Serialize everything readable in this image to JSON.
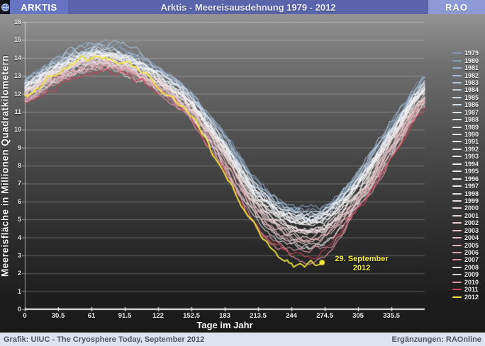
{
  "header": {
    "logo_text": "ARKTIS",
    "title": "Arktis - Meereisausdehnung 1979 - 2012",
    "brand": "RAO"
  },
  "footer": {
    "left": "Grafik: UIUC - The Cryosphere Today, September 2012",
    "right": "Ergänzungen: RAOnline"
  },
  "colors": {
    "header_logo_bg": "#6774C2",
    "header_title_bg": "#5964AA",
    "header_brand_bg": "#8E9AD6",
    "footer_bg": "#DDE3F0",
    "annotation_yellow": "#F5EA3E",
    "grid": "rgba(255,255,255,0.28)",
    "axis": "#F2F2F2"
  },
  "chart_data": {
    "type": "line",
    "title": "Arktis - Meereisausdehnung 1979 - 2012",
    "xlabel": "Tage im Jahr",
    "ylabel": "Meereisfläche in Millionen Quadratkilometern",
    "xlim": [
      0,
      366
    ],
    "ylim": [
      0,
      16
    ],
    "x_ticks": [
      0,
      30.5,
      61,
      91.5,
      122,
      152.5,
      183,
      213.5,
      244,
      274.5,
      305,
      335.5
    ],
    "y_ticks": [
      0,
      1,
      2,
      3,
      4,
      5,
      6,
      7,
      8,
      9,
      10,
      11,
      12,
      13,
      14,
      15,
      16
    ],
    "grid": "horizontal",
    "legend_position": "right",
    "x_days": [
      0,
      30,
      61,
      91,
      122,
      152,
      183,
      213,
      244,
      274,
      305,
      335,
      366
    ],
    "series": [
      {
        "name": "1979",
        "color": "#7C94B0",
        "values": [
          12.9,
          13.9,
          14.6,
          14.4,
          13.4,
          12.0,
          9.6,
          7.0,
          5.7,
          5.7,
          7.6,
          10.3,
          12.8
        ]
      },
      {
        "name": "1980",
        "color": "#89A2BC",
        "values": [
          12.8,
          14.0,
          14.8,
          14.5,
          13.5,
          11.9,
          9.7,
          7.1,
          5.6,
          5.8,
          7.5,
          10.2,
          12.9
        ]
      },
      {
        "name": "1981",
        "color": "#97AFC7",
        "values": [
          12.6,
          13.7,
          14.4,
          14.2,
          13.2,
          11.8,
          9.4,
          6.8,
          5.5,
          5.5,
          7.4,
          10.1,
          12.6
        ]
      },
      {
        "name": "1982",
        "color": "#A5BBD1",
        "values": [
          12.9,
          14.0,
          14.8,
          14.6,
          13.4,
          12.1,
          9.6,
          7.0,
          5.7,
          5.6,
          7.6,
          10.4,
          12.8
        ]
      },
      {
        "name": "1983",
        "color": "#B2C6DA",
        "values": [
          12.7,
          13.8,
          14.5,
          14.3,
          13.3,
          11.9,
          9.5,
          6.9,
          5.5,
          5.6,
          7.4,
          10.1,
          12.6
        ]
      },
      {
        "name": "1984",
        "color": "#BFD0E1",
        "values": [
          12.5,
          13.6,
          14.2,
          14.0,
          13.0,
          11.6,
          9.2,
          6.6,
          5.2,
          5.3,
          7.2,
          9.9,
          12.4
        ]
      },
      {
        "name": "1985",
        "color": "#CBD9E8",
        "values": [
          12.6,
          13.7,
          14.4,
          14.2,
          13.2,
          11.8,
          9.3,
          6.7,
          5.3,
          5.4,
          7.3,
          10.0,
          12.5
        ]
      },
      {
        "name": "1986",
        "color": "#D5E1ED",
        "values": [
          12.6,
          13.6,
          14.3,
          14.1,
          13.1,
          11.7,
          9.3,
          6.7,
          5.4,
          5.5,
          7.3,
          10.0,
          12.5
        ]
      },
      {
        "name": "1987",
        "color": "#DEE7F1",
        "values": [
          12.5,
          13.6,
          14.3,
          14.1,
          13.1,
          11.7,
          9.2,
          6.6,
          5.3,
          5.4,
          7.2,
          9.9,
          12.4
        ]
      },
      {
        "name": "1988",
        "color": "#E5ECF4",
        "values": [
          12.5,
          13.5,
          14.2,
          14.0,
          13.0,
          11.6,
          9.1,
          6.5,
          5.2,
          5.3,
          7.1,
          9.9,
          12.4
        ]
      },
      {
        "name": "1989",
        "color": "#EBF0F6",
        "values": [
          12.4,
          13.5,
          14.2,
          14.0,
          13.0,
          11.6,
          9.1,
          6.4,
          5.1,
          5.2,
          7.0,
          9.8,
          12.3
        ]
      },
      {
        "name": "1990",
        "color": "#EFF2F6",
        "values": [
          12.4,
          13.4,
          14.1,
          13.9,
          12.9,
          11.5,
          9.0,
          6.3,
          5.0,
          5.1,
          6.9,
          9.7,
          12.2
        ]
      },
      {
        "name": "1991",
        "color": "#F1F3F6",
        "values": [
          12.4,
          13.5,
          14.2,
          14.0,
          13.0,
          11.5,
          9.0,
          6.3,
          5.0,
          5.1,
          7.0,
          9.7,
          12.3
        ]
      },
      {
        "name": "1992",
        "color": "#F2F3F5",
        "values": [
          12.3,
          13.4,
          14.1,
          13.9,
          12.9,
          11.5,
          9.0,
          6.4,
          5.1,
          5.2,
          7.0,
          9.8,
          12.3
        ]
      },
      {
        "name": "1993",
        "color": "#F2F2F3",
        "values": [
          12.3,
          13.4,
          14.1,
          13.9,
          12.8,
          11.4,
          8.9,
          6.2,
          4.9,
          5.0,
          6.8,
          9.6,
          12.1
        ]
      },
      {
        "name": "1994",
        "color": "#F2F0F1",
        "values": [
          12.2,
          13.3,
          14.0,
          13.8,
          12.8,
          11.4,
          8.8,
          6.1,
          4.8,
          4.9,
          6.8,
          9.5,
          12.1
        ]
      },
      {
        "name": "1995",
        "color": "#F1EDEE",
        "values": [
          12.2,
          13.3,
          14.0,
          13.8,
          12.7,
          11.3,
          8.7,
          6.0,
          4.6,
          4.7,
          6.7,
          9.4,
          12.0
        ]
      },
      {
        "name": "1996",
        "color": "#F0EAEB",
        "values": [
          12.1,
          13.2,
          13.9,
          13.7,
          12.8,
          11.4,
          8.9,
          6.3,
          5.1,
          5.2,
          6.9,
          9.6,
          12.1
        ]
      },
      {
        "name": "1997",
        "color": "#EFE6E7",
        "values": [
          12.1,
          13.2,
          13.9,
          13.7,
          12.7,
          11.3,
          8.7,
          5.9,
          4.6,
          4.7,
          6.6,
          9.3,
          11.9
        ]
      },
      {
        "name": "1998",
        "color": "#EDE2E3",
        "values": [
          12.1,
          13.2,
          13.9,
          13.6,
          12.6,
          11.2,
          8.6,
          5.8,
          4.5,
          4.6,
          6.5,
          9.3,
          11.9
        ]
      },
      {
        "name": "1999",
        "color": "#ECDDDE",
        "values": [
          12.0,
          13.1,
          13.8,
          13.6,
          12.6,
          11.2,
          8.6,
          5.7,
          4.4,
          4.5,
          6.4,
          9.2,
          11.8
        ]
      },
      {
        "name": "2000",
        "color": "#EAD7D9",
        "values": [
          12.0,
          13.1,
          13.8,
          13.5,
          12.5,
          11.1,
          8.5,
          5.7,
          4.3,
          4.4,
          6.3,
          9.1,
          11.8
        ]
      },
      {
        "name": "2001",
        "color": "#E8D1D4",
        "values": [
          12.0,
          13.1,
          13.8,
          13.6,
          12.6,
          11.1,
          8.5,
          5.6,
          4.3,
          4.4,
          6.3,
          9.1,
          11.8
        ]
      },
      {
        "name": "2002",
        "color": "#E6CBCE",
        "values": [
          11.9,
          13.0,
          13.7,
          13.5,
          12.5,
          11.0,
          8.4,
          5.5,
          4.2,
          4.2,
          6.2,
          9.0,
          11.7
        ]
      },
      {
        "name": "2003",
        "color": "#E3C4C8",
        "values": [
          11.9,
          13.0,
          13.7,
          13.5,
          12.4,
          11.0,
          8.4,
          5.5,
          4.1,
          4.2,
          6.2,
          9.0,
          11.7
        ]
      },
      {
        "name": "2004",
        "color": "#E1BCC1",
        "values": [
          11.8,
          12.9,
          13.6,
          13.4,
          12.4,
          10.9,
          8.3,
          5.4,
          4.0,
          4.1,
          6.1,
          8.9,
          11.6
        ]
      },
      {
        "name": "2005",
        "color": "#DEB3B9",
        "values": [
          11.8,
          12.9,
          13.6,
          13.4,
          12.3,
          10.9,
          8.2,
          5.3,
          3.9,
          4.0,
          6.0,
          8.8,
          11.6
        ]
      },
      {
        "name": "2006",
        "color": "#DBAAB1",
        "values": [
          11.7,
          12.8,
          13.5,
          13.3,
          12.3,
          10.8,
          8.2,
          5.2,
          3.8,
          3.9,
          6.0,
          8.8,
          11.5
        ]
      },
      {
        "name": "2007",
        "color": "#E394A3",
        "values": [
          11.7,
          12.8,
          13.5,
          13.3,
          12.2,
          10.7,
          7.9,
          4.6,
          3.1,
          3.0,
          5.6,
          8.5,
          11.3
        ]
      },
      {
        "name": "2008",
        "color": "#E3DCE0",
        "values": [
          11.6,
          12.7,
          13.5,
          13.3,
          12.2,
          10.7,
          8.0,
          5.0,
          3.6,
          3.7,
          5.8,
          8.6,
          11.4
        ]
      },
      {
        "name": "2009",
        "color": "#D8CDD2",
        "values": [
          11.6,
          12.7,
          13.4,
          13.2,
          12.1,
          10.6,
          8.0,
          4.9,
          3.6,
          3.7,
          5.8,
          8.6,
          11.4
        ]
      },
      {
        "name": "2010",
        "color": "#DA92A0",
        "values": [
          11.5,
          12.6,
          13.4,
          13.2,
          12.1,
          10.6,
          7.8,
          4.7,
          3.4,
          3.5,
          5.7,
          8.5,
          11.3
        ]
      },
      {
        "name": "2011",
        "color": "#CB4357",
        "values": [
          11.4,
          12.5,
          13.3,
          13.1,
          12.0,
          10.5,
          7.7,
          4.5,
          3.2,
          3.2,
          5.6,
          8.4,
          11.2
        ]
      },
      {
        "name": "2012",
        "color": "#F2E73E",
        "values": [
          11.8,
          13.2,
          14.0,
          13.7,
          12.4,
          10.6,
          7.5,
          4.2,
          2.5,
          2.6
        ],
        "end_day": 272
      }
    ],
    "annotation": {
      "text_line1": "29. September",
      "text_line2": "2012",
      "day": 272,
      "value": 2.6,
      "color": "#F5EA3E"
    }
  }
}
